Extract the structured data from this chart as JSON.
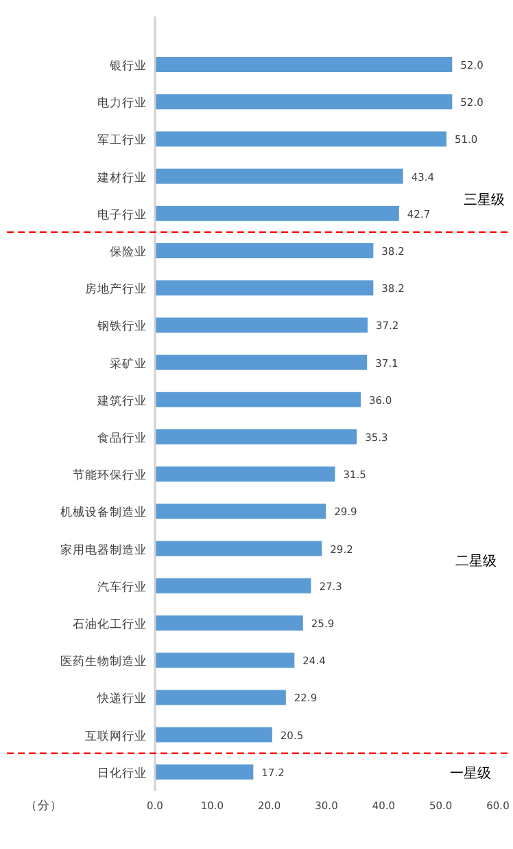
{
  "chart_data": {
    "type": "bar",
    "orientation": "horizontal",
    "xlabel": "（分）",
    "categories": [
      "银行业",
      "电力行业",
      "军工行业",
      "建材行业",
      "电子行业",
      "保险业",
      "房地产行业",
      "钢铁行业",
      "采矿业",
      "建筑行业",
      "食品行业",
      "节能环保行业",
      "机械设备制造业",
      "家用电器制造业",
      "汽车行业",
      "石油化工行业",
      "医药生物制造业",
      "快递行业",
      "互联网行业",
      "日化行业"
    ],
    "values": [
      52.0,
      52.0,
      51.0,
      43.4,
      42.7,
      38.2,
      38.2,
      37.2,
      37.1,
      36.0,
      35.3,
      31.5,
      29.9,
      29.2,
      27.3,
      25.9,
      24.4,
      22.9,
      20.5,
      17.2
    ],
    "color": "#5b9bd5",
    "grid": false,
    "xlim": [
      0,
      60
    ],
    "xticks": [
      {
        "value": 0,
        "label": "0.0"
      },
      {
        "value": 10,
        "label": "10.0"
      },
      {
        "value": 20,
        "label": "20.0"
      },
      {
        "value": 30,
        "label": "30.0"
      },
      {
        "value": 40,
        "label": "40.0"
      },
      {
        "value": 50,
        "label": "50.0"
      },
      {
        "value": 60,
        "label": "60.0"
      }
    ],
    "value_labels": [
      "52.0",
      "52.0",
      "51.0",
      "43.4",
      "42.7",
      "38.2",
      "38.2",
      "37.2",
      "37.1",
      "36.0",
      "35.3",
      "31.5",
      "29.9",
      "29.2",
      "27.3",
      "25.9",
      "24.4",
      "22.9",
      "20.5",
      "17.2"
    ],
    "annotations": [
      "三星级",
      "二星级",
      "一星级"
    ]
  }
}
